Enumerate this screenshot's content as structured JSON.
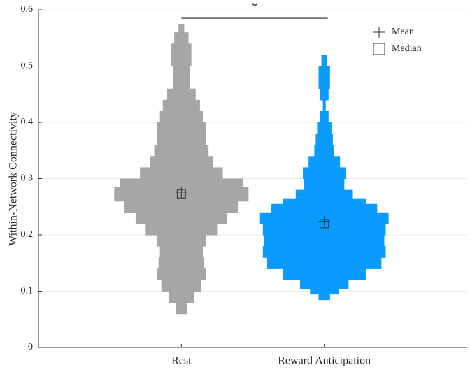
{
  "chart_data": {
    "type": "violin",
    "ylabel": "Within-Network Connectivity",
    "categories": [
      "Rest",
      "Reward Anticipation"
    ],
    "xlim": [
      0,
      3
    ],
    "ylim": [
      0,
      0.6
    ],
    "yticks": [
      0,
      0.1,
      0.2,
      0.3,
      0.4,
      0.5,
      0.6
    ],
    "grid": true,
    "legend_position": "upper right",
    "legend": [
      "Mean",
      "Median"
    ],
    "significance": {
      "label": "*",
      "y": 0.585
    },
    "series": [
      {
        "name": "Rest",
        "color": "#a6a6a6",
        "mean": 0.276,
        "median": 0.273,
        "y": [
          0.05,
          0.07,
          0.09,
          0.11,
          0.13,
          0.15,
          0.17,
          0.19,
          0.21,
          0.23,
          0.25,
          0.27,
          0.28,
          0.29,
          0.31,
          0.33,
          0.35,
          0.37,
          0.39,
          0.41,
          0.43,
          0.45,
          0.47,
          0.49,
          0.51,
          0.53,
          0.55,
          0.57,
          0.58
        ],
        "width": [
          0,
          0.04,
          0.09,
          0.14,
          0.17,
          0.16,
          0.15,
          0.17,
          0.25,
          0.32,
          0.4,
          0.47,
          0.47,
          0.43,
          0.29,
          0.22,
          0.19,
          0.17,
          0.17,
          0.15,
          0.13,
          0.1,
          0.06,
          0.06,
          0.07,
          0.07,
          0.05,
          0.02,
          0
        ]
      },
      {
        "name": "Reward Anticipation",
        "color": "#0a9bff",
        "mean": 0.224,
        "median": 0.22,
        "y": [
          0.08,
          0.09,
          0.1,
          0.11,
          0.13,
          0.15,
          0.17,
          0.19,
          0.21,
          0.23,
          0.25,
          0.26,
          0.27,
          0.29,
          0.31,
          0.33,
          0.35,
          0.37,
          0.39,
          0.41,
          0.43,
          0.45,
          0.47,
          0.49,
          0.51,
          0.53
        ],
        "width": [
          0,
          0.04,
          0.1,
          0.17,
          0.29,
          0.4,
          0.43,
          0.42,
          0.43,
          0.45,
          0.37,
          0.29,
          0.2,
          0.14,
          0.15,
          0.11,
          0.07,
          0.06,
          0.05,
          0.03,
          0.01,
          0.03,
          0.04,
          0.04,
          0.02,
          0
        ]
      }
    ]
  }
}
